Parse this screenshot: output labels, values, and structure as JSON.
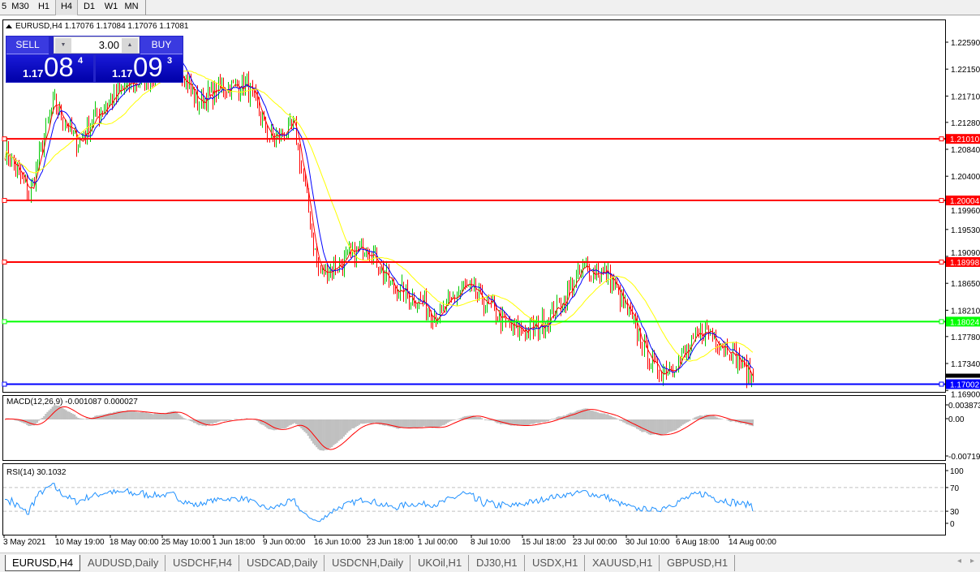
{
  "timeframes": [
    "5",
    "M30",
    "H1",
    "H4",
    "D1",
    "W1",
    "MN"
  ],
  "active_timeframe": "H4",
  "chart": {
    "title": "EURUSD,H4",
    "ohlc": "1.17076 1.17084 1.17076 1.17081",
    "price_labels": [
      "1.22590",
      "1.22150",
      "1.21710",
      "1.21280",
      "1.20840",
      "1.20400",
      "1.19960",
      "1.19530",
      "1.19090",
      "1.18650",
      "1.18210",
      "1.17780",
      "1.17340",
      "1.16900"
    ],
    "price_values": [
      1.2259,
      1.2215,
      1.2171,
      1.2128,
      1.2084,
      1.204,
      1.1996,
      1.1953,
      1.1909,
      1.1865,
      1.1821,
      1.1778,
      1.1734,
      1.169
    ],
    "current_price": "1.17081",
    "hlines": [
      {
        "price": 1.2101,
        "label": "1.21010",
        "color": "#ff0000"
      },
      {
        "price": 1.20004,
        "label": "1.20004",
        "color": "#ff0000"
      },
      {
        "price": 1.18998,
        "label": "1.18998",
        "color": "#ff0000"
      },
      {
        "price": 1.18024,
        "label": "1.18024",
        "color": "#00ff00"
      },
      {
        "price": 1.17002,
        "label": "1.17002",
        "color": "#0000ff"
      }
    ],
    "time_labels": [
      "3 May 2021",
      "10 May 19:00",
      "18 May 00:00",
      "25 May 10:00",
      "1 Jun 18:00",
      "9 Jun 00:00",
      "16 Jun 10:00",
      "23 Jun 18:00",
      "1 Jul 00:00",
      "8 Jul 10:00",
      "15 Jul 18:00",
      "23 Jul 00:00",
      "30 Jul 10:00",
      "6 Aug 18:00",
      "14 Aug 00:00"
    ],
    "price_path": [
      1.2085,
      1.201,
      1.216,
      1.2095,
      1.215,
      1.2185,
      1.2205,
      1.2235,
      1.216,
      1.2185,
      1.219,
      1.21,
      1.212,
      1.188,
      1.19,
      1.193,
      1.186,
      1.184,
      1.181,
      1.186,
      1.183,
      1.179,
      1.179,
      1.183,
      1.189,
      1.188,
      1.18,
      1.172,
      1.174,
      1.179,
      1.176,
      1.1708
    ],
    "colors": {
      "up": "#00c800",
      "down": "#ff0000",
      "ma_fast": "#ff0000",
      "ma_mid": "#0000ff",
      "ma_slow": "#ffff00"
    }
  },
  "trade_panel": {
    "sell_label": "SELL",
    "buy_label": "BUY",
    "lot": "3.00",
    "sell_prefix": "1.17",
    "sell_big": "08",
    "sell_sup": "4",
    "buy_prefix": "1.17",
    "buy_big": "09",
    "buy_sup": "3"
  },
  "macd": {
    "title": "MACD(12,26,9) -0.001087 0.000027",
    "scale": [
      "0.003873",
      "0.00",
      "-0.007195"
    ]
  },
  "rsi": {
    "title": "RSI(14) 30.1032",
    "scale": [
      "100",
      "70",
      "30",
      "0"
    ]
  },
  "tabs": [
    "EURUSD,H4",
    "AUDUSD,Daily",
    "USDCHF,H4",
    "USDCAD,Daily",
    "USDCNH,Daily",
    "UKOil,H1",
    "DJ30,H1",
    "USDX,H1",
    "XAUUSD,H1",
    "GBPUSD,H1"
  ],
  "active_tab": "EURUSD,H4"
}
